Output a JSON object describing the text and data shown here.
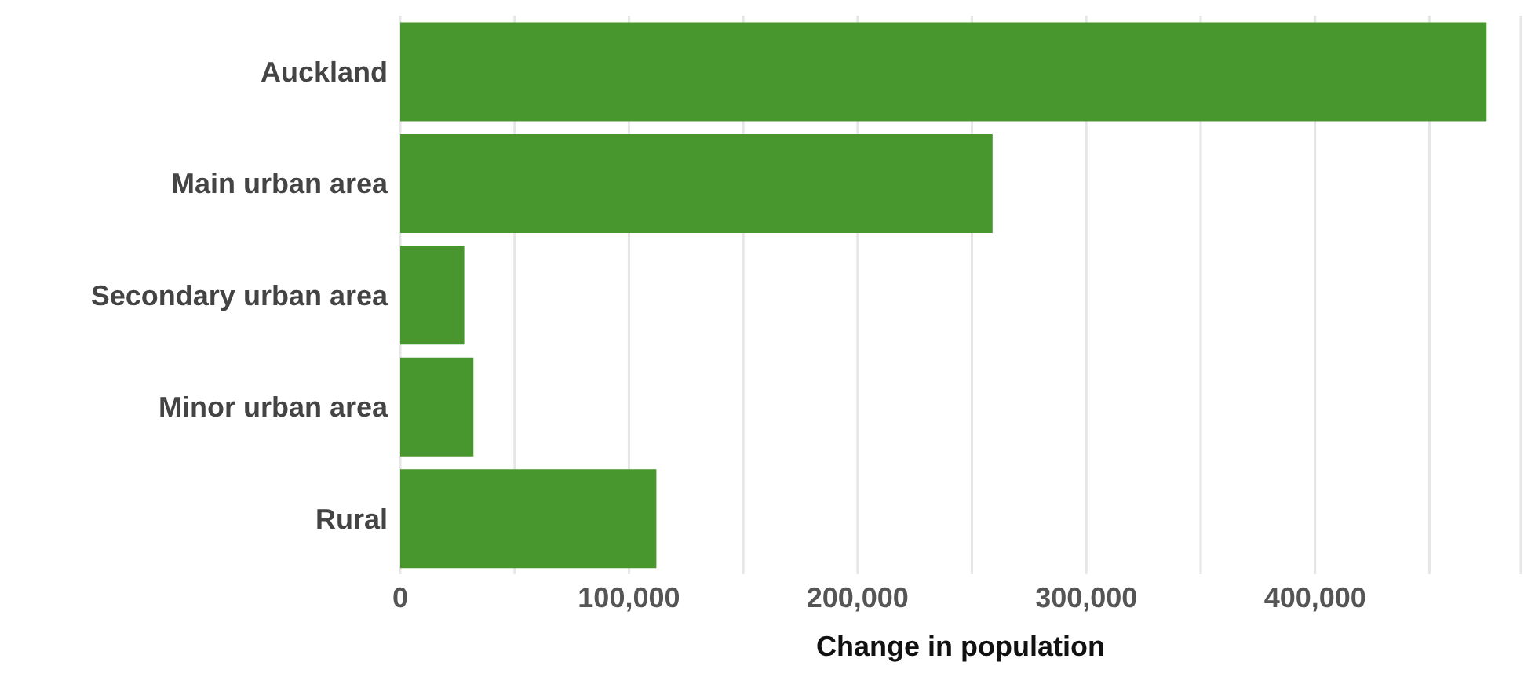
{
  "chart_data": {
    "type": "bar",
    "orientation": "horizontal",
    "xlabel": "Change in population",
    "categories": [
      "Auckland",
      "Main urban area",
      "Secondary urban area",
      "Minor urban area",
      "Rural"
    ],
    "values": [
      475000,
      259000,
      28000,
      32000,
      112000
    ],
    "color": "#48972e",
    "xlim": [
      0,
      490000
    ],
    "xticks": [
      0,
      {
        "value": 50000,
        "label": null
      },
      {
        "value": 100000,
        "label": "100,000"
      },
      {
        "value": 150000,
        "label": null
      },
      {
        "value": 200000,
        "label": "200,000"
      },
      {
        "value": 250000,
        "label": null
      },
      {
        "value": 300000,
        "label": "300,000"
      },
      {
        "value": 350000,
        "label": null
      },
      {
        "value": 400000,
        "label": "400,000"
      },
      {
        "value": 450000,
        "label": null
      }
    ],
    "grid": "x",
    "legend": false
  }
}
